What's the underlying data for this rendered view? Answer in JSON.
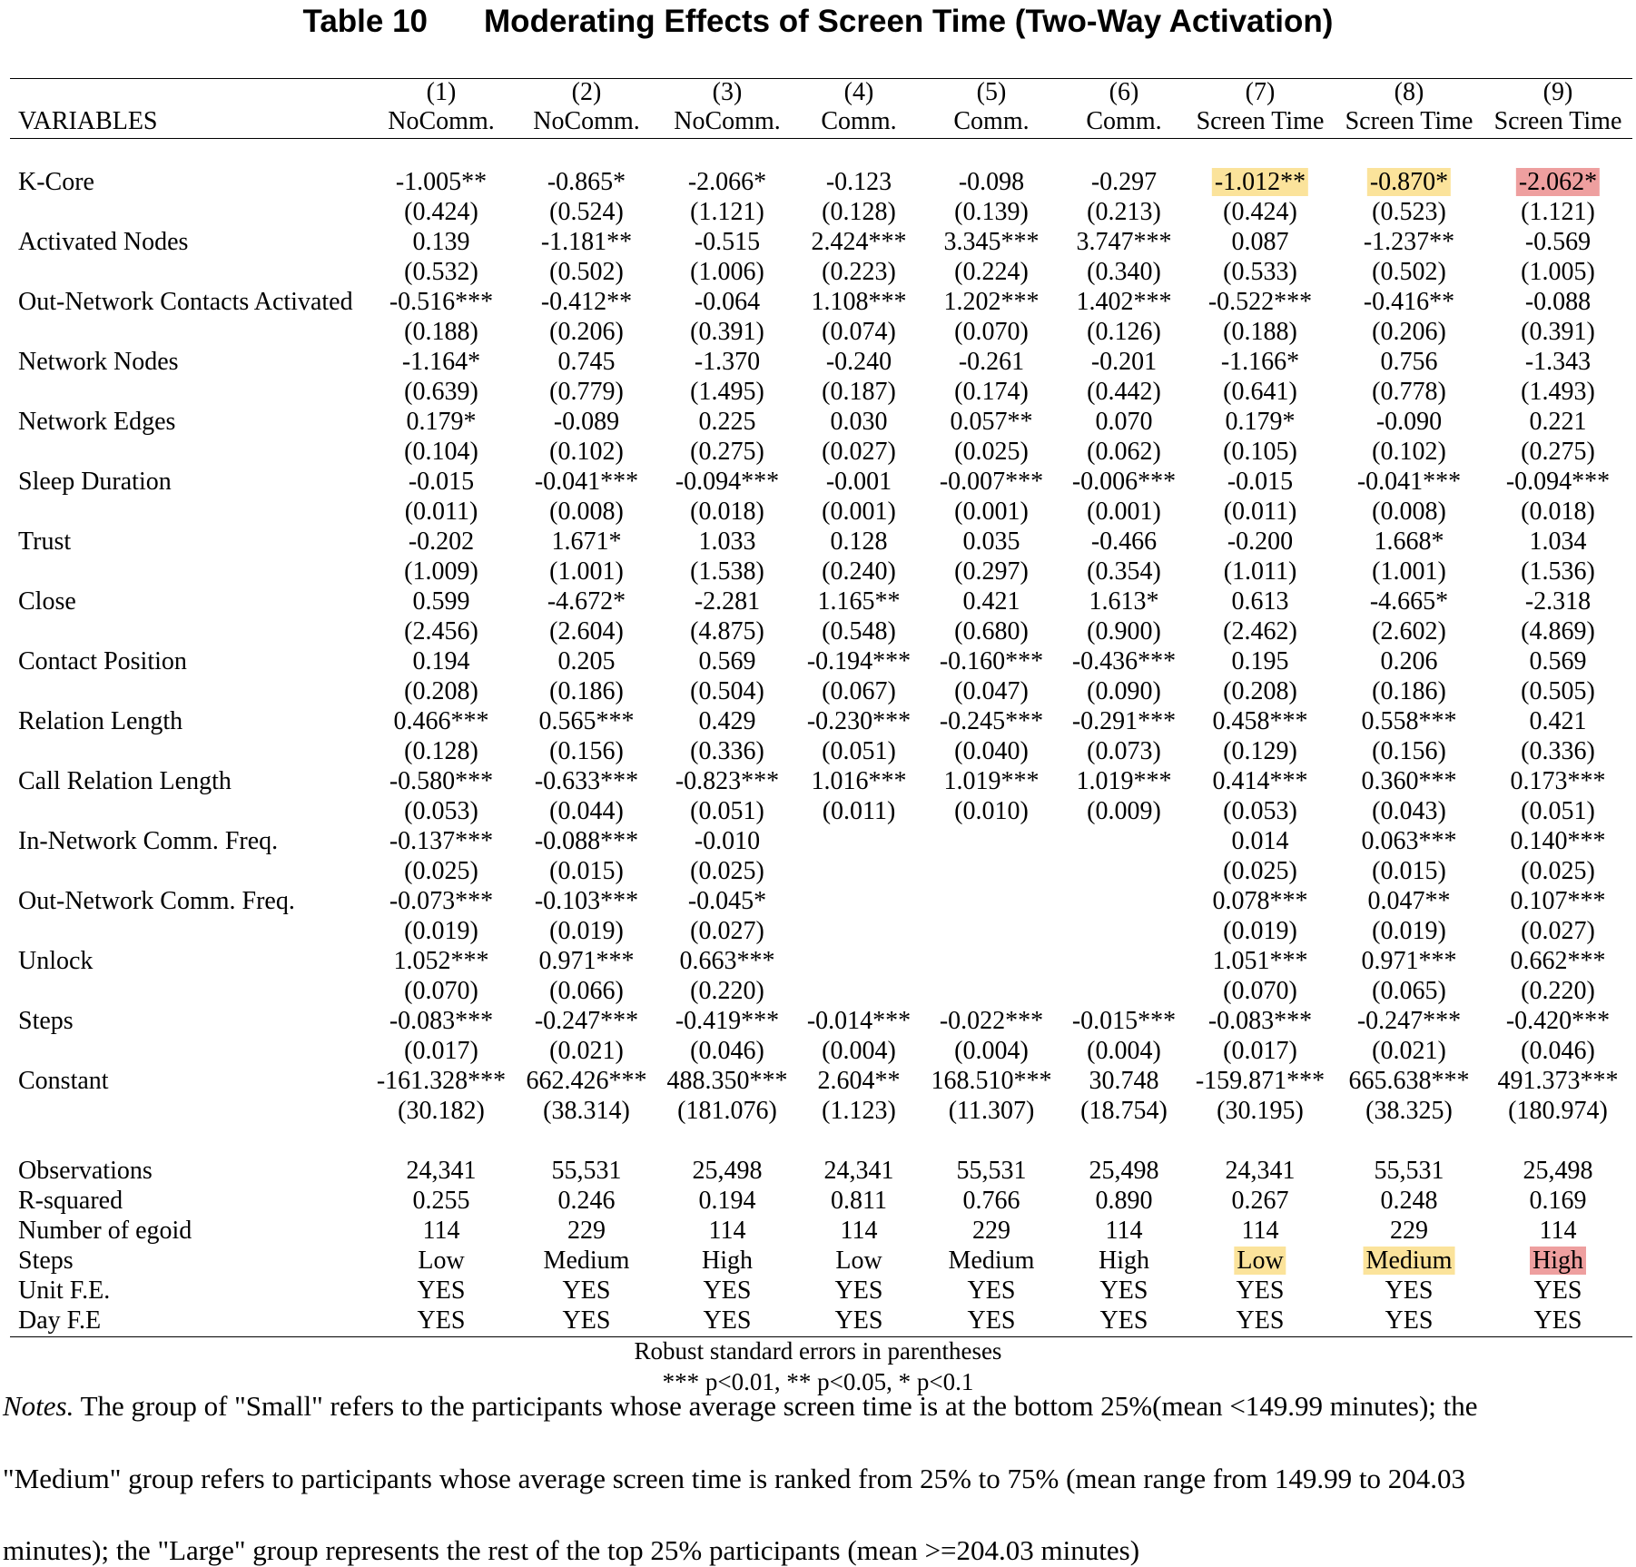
{
  "title": {
    "number": "Table 10",
    "text": "Moderating Effects of Screen Time (Two-Way Activation)"
  },
  "header": {
    "variables_label": "VARIABLES",
    "columns": [
      {
        "num": "(1)",
        "name": "NoComm."
      },
      {
        "num": "(2)",
        "name": "NoComm."
      },
      {
        "num": "(3)",
        "name": "NoComm."
      },
      {
        "num": "(4)",
        "name": "Comm."
      },
      {
        "num": "(5)",
        "name": "Comm."
      },
      {
        "num": "(6)",
        "name": "Comm."
      },
      {
        "num": "(7)",
        "name": "Screen Time"
      },
      {
        "num": "(8)",
        "name": "Screen Time"
      },
      {
        "num": "(9)",
        "name": "Screen Time"
      }
    ]
  },
  "rows": [
    {
      "label": "K-Core",
      "coef": [
        "-1.005**",
        "-0.865*",
        "-2.066*",
        "-0.123",
        "-0.098",
        "-0.297",
        "-1.012**",
        "-0.870*",
        "-2.062*"
      ],
      "se": [
        "(0.424)",
        "(0.524)",
        "(1.121)",
        "(0.128)",
        "(0.139)",
        "(0.213)",
        "(0.424)",
        "(0.523)",
        "(1.121)"
      ],
      "highlight": [
        "",
        "",
        "",
        "",
        "",
        "",
        "yellow",
        "yellow",
        "red"
      ]
    },
    {
      "label": "Activated Nodes",
      "coef": [
        "0.139",
        "-1.181**",
        "-0.515",
        "2.424***",
        "3.345***",
        "3.747***",
        "0.087",
        "-1.237**",
        "-0.569"
      ],
      "se": [
        "(0.532)",
        "(0.502)",
        "(1.006)",
        "(0.223)",
        "(0.224)",
        "(0.340)",
        "(0.533)",
        "(0.502)",
        "(1.005)"
      ]
    },
    {
      "label": "Out-Network Contacts Activated",
      "coef": [
        "-0.516***",
        "-0.412**",
        "-0.064",
        "1.108***",
        "1.202***",
        "1.402***",
        "-0.522***",
        "-0.416**",
        "-0.088"
      ],
      "se": [
        "(0.188)",
        "(0.206)",
        "(0.391)",
        "(0.074)",
        "(0.070)",
        "(0.126)",
        "(0.188)",
        "(0.206)",
        "(0.391)"
      ]
    },
    {
      "label": "Network Nodes",
      "coef": [
        "-1.164*",
        "0.745",
        "-1.370",
        "-0.240",
        "-0.261",
        "-0.201",
        "-1.166*",
        "0.756",
        "-1.343"
      ],
      "se": [
        "(0.639)",
        "(0.779)",
        "(1.495)",
        "(0.187)",
        "(0.174)",
        "(0.442)",
        "(0.641)",
        "(0.778)",
        "(1.493)"
      ]
    },
    {
      "label": "Network Edges",
      "coef": [
        "0.179*",
        "-0.089",
        "0.225",
        "0.030",
        "0.057**",
        "0.070",
        "0.179*",
        "-0.090",
        "0.221"
      ],
      "se": [
        "(0.104)",
        "(0.102)",
        "(0.275)",
        "(0.027)",
        "(0.025)",
        "(0.062)",
        "(0.105)",
        "(0.102)",
        "(0.275)"
      ]
    },
    {
      "label": "Sleep Duration",
      "coef": [
        "-0.015",
        "-0.041***",
        "-0.094***",
        "-0.001",
        "-0.007***",
        "-0.006***",
        "-0.015",
        "-0.041***",
        "-0.094***"
      ],
      "se": [
        "(0.011)",
        "(0.008)",
        "(0.018)",
        "(0.001)",
        "(0.001)",
        "(0.001)",
        "(0.011)",
        "(0.008)",
        "(0.018)"
      ]
    },
    {
      "label": "Trust",
      "coef": [
        "-0.202",
        "1.671*",
        "1.033",
        "0.128",
        "0.035",
        "-0.466",
        "-0.200",
        "1.668*",
        "1.034"
      ],
      "se": [
        "(1.009)",
        "(1.001)",
        "(1.538)",
        "(0.240)",
        "(0.297)",
        "(0.354)",
        "(1.011)",
        "(1.001)",
        "(1.536)"
      ]
    },
    {
      "label": "Close",
      "coef": [
        "0.599",
        "-4.672*",
        "-2.281",
        "1.165**",
        "0.421",
        "1.613*",
        "0.613",
        "-4.665*",
        "-2.318"
      ],
      "se": [
        "(2.456)",
        "(2.604)",
        "(4.875)",
        "(0.548)",
        "(0.680)",
        "(0.900)",
        "(2.462)",
        "(2.602)",
        "(4.869)"
      ]
    },
    {
      "label": "Contact Position",
      "coef": [
        "0.194",
        "0.205",
        "0.569",
        "-0.194***",
        "-0.160***",
        "-0.436***",
        "0.195",
        "0.206",
        "0.569"
      ],
      "se": [
        "(0.208)",
        "(0.186)",
        "(0.504)",
        "(0.067)",
        "(0.047)",
        "(0.090)",
        "(0.208)",
        "(0.186)",
        "(0.505)"
      ]
    },
    {
      "label": "Relation Length",
      "coef": [
        "0.466***",
        "0.565***",
        "0.429",
        "-0.230***",
        "-0.245***",
        "-0.291***",
        "0.458***",
        "0.558***",
        "0.421"
      ],
      "se": [
        "(0.128)",
        "(0.156)",
        "(0.336)",
        "(0.051)",
        "(0.040)",
        "(0.073)",
        "(0.129)",
        "(0.156)",
        "(0.336)"
      ]
    },
    {
      "label": "Call Relation Length",
      "coef": [
        "-0.580***",
        "-0.633***",
        "-0.823***",
        "1.016***",
        "1.019***",
        "1.019***",
        "0.414***",
        "0.360***",
        "0.173***"
      ],
      "se": [
        "(0.053)",
        "(0.044)",
        "(0.051)",
        "(0.011)",
        "(0.010)",
        "(0.009)",
        "(0.053)",
        "(0.043)",
        "(0.051)"
      ]
    },
    {
      "label": "In-Network Comm. Freq.",
      "coef": [
        "-0.137***",
        "-0.088***",
        "-0.010",
        "",
        "",
        "",
        "0.014",
        "0.063***",
        "0.140***"
      ],
      "se": [
        "(0.025)",
        "(0.015)",
        "(0.025)",
        "",
        "",
        "",
        "(0.025)",
        "(0.015)",
        "(0.025)"
      ]
    },
    {
      "label": "Out-Network Comm. Freq.",
      "coef": [
        "-0.073***",
        "-0.103***",
        "-0.045*",
        "",
        "",
        "",
        "0.078***",
        "0.047**",
        "0.107***"
      ],
      "se": [
        "(0.019)",
        "(0.019)",
        "(0.027)",
        "",
        "",
        "",
        "(0.019)",
        "(0.019)",
        "(0.027)"
      ]
    },
    {
      "label": "Unlock",
      "coef": [
        "1.052***",
        "0.971***",
        "0.663***",
        "",
        "",
        "",
        "1.051***",
        "0.971***",
        "0.662***"
      ],
      "se": [
        "(0.070)",
        "(0.066)",
        "(0.220)",
        "",
        "",
        "",
        "(0.070)",
        "(0.065)",
        "(0.220)"
      ]
    },
    {
      "label": "Steps",
      "coef": [
        "-0.083***",
        "-0.247***",
        "-0.419***",
        "-0.014***",
        "-0.022***",
        "-0.015***",
        "-0.083***",
        "-0.247***",
        "-0.420***"
      ],
      "se": [
        "(0.017)",
        "(0.021)",
        "(0.046)",
        "(0.004)",
        "(0.004)",
        "(0.004)",
        "(0.017)",
        "(0.021)",
        "(0.046)"
      ]
    },
    {
      "label": "Constant",
      "coef": [
        "-161.328***",
        "662.426***",
        "488.350***",
        "2.604**",
        "168.510***",
        "30.748",
        "-159.871***",
        "665.638***",
        "491.373***"
      ],
      "se": [
        "(30.182)",
        "(38.314)",
        "(181.076)",
        "(1.123)",
        "(11.307)",
        "(18.754)",
        "(30.195)",
        "(38.325)",
        "(180.974)"
      ]
    }
  ],
  "stats": [
    {
      "label": "Observations",
      "values": [
        "24,341",
        "55,531",
        "25,498",
        "24,341",
        "55,531",
        "25,498",
        "24,341",
        "55,531",
        "25,498"
      ]
    },
    {
      "label": "R-squared",
      "values": [
        "0.255",
        "0.246",
        "0.194",
        "0.811",
        "0.766",
        "0.890",
        "0.267",
        "0.248",
        "0.169"
      ]
    },
    {
      "label": "Number of egoid",
      "values": [
        "114",
        "229",
        "114",
        "114",
        "229",
        "114",
        "114",
        "229",
        "114"
      ]
    },
    {
      "label": "Steps",
      "values": [
        "Low",
        "Medium",
        "High",
        "Low",
        "Medium",
        "High",
        "Low",
        "Medium",
        "High"
      ],
      "highlight": [
        "",
        "",
        "",
        "",
        "",
        "",
        "yellow",
        "yellow",
        "red"
      ]
    },
    {
      "label": "Unit F.E.",
      "values": [
        "YES",
        "YES",
        "YES",
        "YES",
        "YES",
        "YES",
        "YES",
        "YES",
        "YES"
      ]
    },
    {
      "label": "Day F.E",
      "values": [
        "YES",
        "YES",
        "YES",
        "YES",
        "YES",
        "YES",
        "YES",
        "YES",
        "YES"
      ]
    }
  ],
  "footnotes": {
    "se_note": "Robust standard errors in parentheses",
    "sig_note": "*** p<0.01, ** p<0.05, * p<0.1"
  },
  "notes": {
    "label": "Notes.",
    "lines": [
      " The group of \"Small\" refers to the participants whose average screen time is at the bottom 25%(mean <149.99 minutes); the",
      "\"Medium\" group refers to participants whose average screen time is ranked from 25% to 75% (mean range from 149.99 to 204.03",
      "minutes); the \"Large\" group represents the rest of the top 25% participants (mean >=204.03 minutes)"
    ]
  },
  "colors": {
    "highlight_yellow": "#fbe39b",
    "highlight_red": "#ee9f9f"
  }
}
